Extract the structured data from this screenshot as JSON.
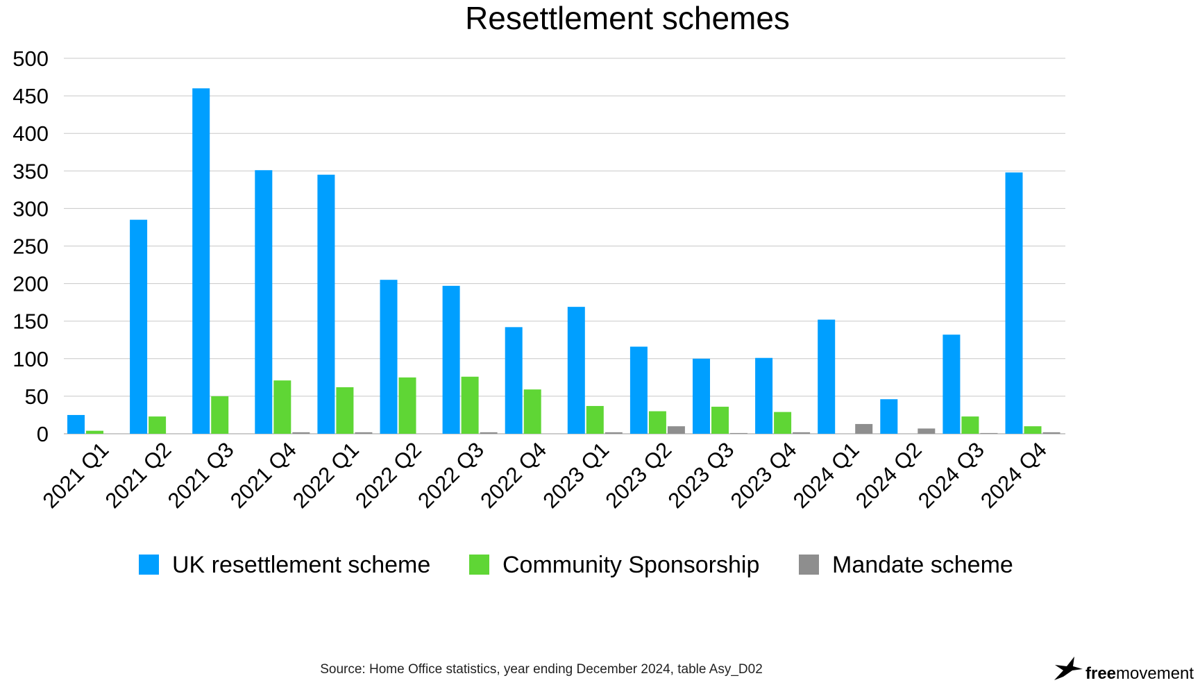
{
  "chart_data": {
    "type": "bar",
    "title": "Resettlement schemes",
    "xlabel": "",
    "ylabel": "",
    "ylim": [
      0,
      500
    ],
    "yticks": [
      0,
      50,
      100,
      150,
      200,
      250,
      300,
      350,
      400,
      450,
      500
    ],
    "grid": true,
    "legend_position": "bottom",
    "categories": [
      "2021 Q1",
      "2021 Q2",
      "2021 Q3",
      "2021 Q4",
      "2022 Q1",
      "2022 Q2",
      "2022 Q3",
      "2022 Q4",
      "2023 Q1",
      "2023 Q2",
      "2023 Q3",
      "2023 Q4",
      "2024 Q1",
      "2024 Q2",
      "2024 Q3",
      "2024 Q4"
    ],
    "series": [
      {
        "name": "UK resettlement scheme",
        "color": "#009fff",
        "values": [
          25,
          285,
          460,
          351,
          345,
          205,
          197,
          142,
          169,
          116,
          100,
          101,
          152,
          46,
          132,
          348
        ]
      },
      {
        "name": "Community Sponsorship",
        "color": "#5fd635",
        "values": [
          4,
          23,
          50,
          71,
          62,
          75,
          76,
          59,
          37,
          30,
          36,
          29,
          0,
          0,
          23,
          10
        ]
      },
      {
        "name": "Mandate scheme",
        "color": "#8e8e8e",
        "values": [
          0,
          0,
          0,
          2,
          2,
          0,
          2,
          0,
          2,
          10,
          1,
          2,
          13,
          7,
          1,
          2
        ]
      }
    ]
  },
  "footer": {
    "source": "Source: Home Office statistics, year ending December 2024, table Asy_D02",
    "logo_bold": "free",
    "logo_light": "movement",
    "logo_icon": "bird-icon"
  }
}
